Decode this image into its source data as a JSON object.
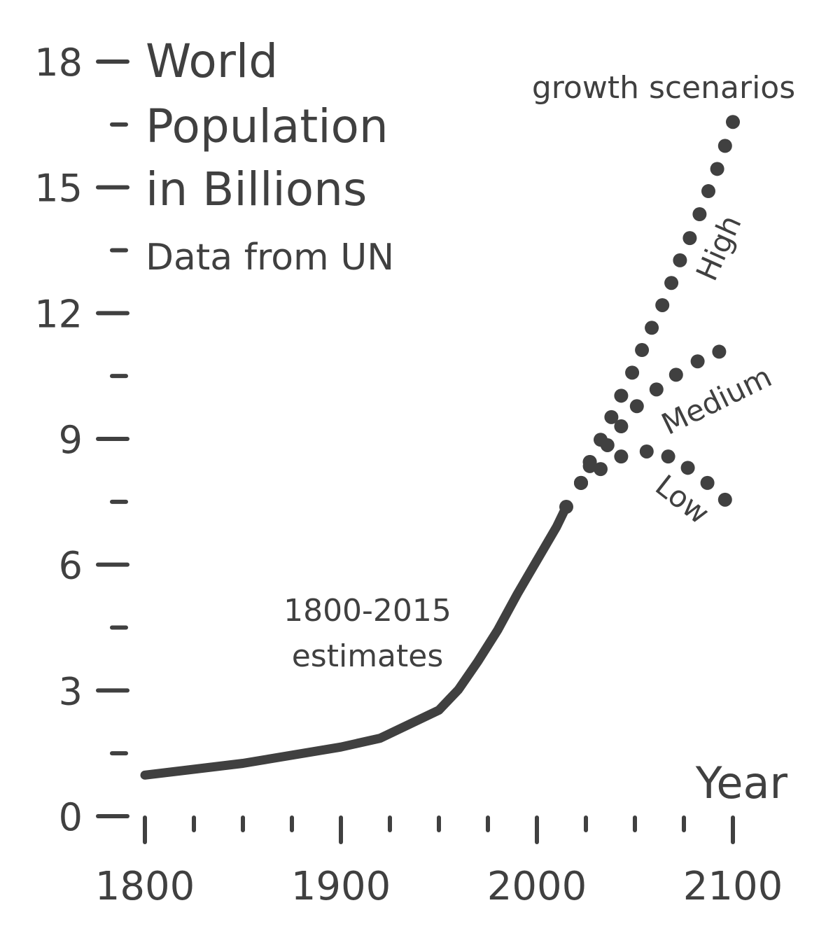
{
  "chart_data": {
    "type": "line",
    "title_lines": [
      "World",
      "Population",
      "in Billions"
    ],
    "subtitle": "Data from UN",
    "xlabel": "Year",
    "ylabel": "",
    "xlim": [
      1800,
      2100
    ],
    "ylim": [
      0,
      18
    ],
    "x_ticks": [
      1800,
      1900,
      2000,
      2100
    ],
    "x_tick_labels": [
      "1800",
      "1900",
      "2000",
      "2100"
    ],
    "x_minor_ticks": [
      1825,
      1850,
      1875,
      1925,
      1950,
      1975,
      2025,
      2050,
      2075
    ],
    "y_ticks": [
      0,
      3,
      6,
      9,
      12,
      15,
      18
    ],
    "y_tick_labels": [
      "0",
      "3",
      "6",
      "9",
      "12",
      "15",
      "18"
    ],
    "y_minor_ticks": [
      1.5,
      4.5,
      7.5,
      10.5,
      13.5,
      16.5
    ],
    "color": "#404040",
    "grid": false,
    "annotations": {
      "estimates_line1": "1800-2015",
      "estimates_line2": "estimates",
      "scenarios": "growth scenarios",
      "high": "High",
      "medium": "Medium",
      "low": "Low"
    },
    "series": [
      {
        "name": "1800-2015 estimates",
        "style": "solid",
        "x": [
          1800,
          1850,
          1900,
          1920,
          1950,
          1960,
          1970,
          1980,
          1990,
          2000,
          2010,
          2015
        ],
        "y": [
          0.98,
          1.26,
          1.65,
          1.86,
          2.53,
          3.02,
          3.7,
          4.44,
          5.3,
          6.1,
          6.9,
          7.38
        ]
      },
      {
        "name": "High",
        "style": "dotted",
        "x": [
          2015,
          2022.5,
          2027,
          2032.5,
          2038,
          2043,
          2048.6,
          2053.6,
          2058.6,
          2064,
          2068.6,
          2073,
          2078,
          2083,
          2087.5,
          2092,
          2096,
          2100
        ],
        "y": [
          7.38,
          7.95,
          8.45,
          8.98,
          9.52,
          10.03,
          10.58,
          11.12,
          11.65,
          12.19,
          12.72,
          13.26,
          13.79,
          14.36,
          14.91,
          15.44,
          15.99,
          16.56
        ]
      },
      {
        "name": "Medium",
        "style": "dotted",
        "x": [
          2022.5,
          2027,
          2036,
          2043,
          2051,
          2061,
          2071,
          2082,
          2093
        ],
        "y": [
          7.95,
          8.45,
          8.85,
          9.3,
          9.78,
          10.18,
          10.53,
          10.85,
          11.08
        ]
      },
      {
        "name": "Low",
        "style": "dotted",
        "x": [
          2022.5,
          2027,
          2032.5,
          2043,
          2056,
          2067,
          2077,
          2087,
          2096
        ],
        "y": [
          7.95,
          8.35,
          8.28,
          8.58,
          8.7,
          8.58,
          8.31,
          7.95,
          7.55
        ]
      }
    ]
  }
}
